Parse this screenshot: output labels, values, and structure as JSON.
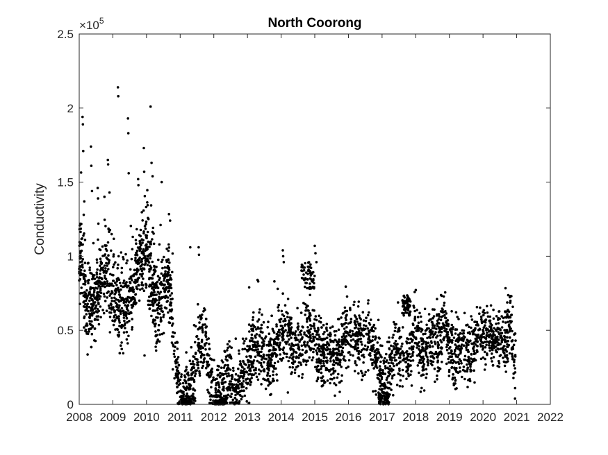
{
  "chart_data": {
    "type": "scatter",
    "title": "North Coorong",
    "xlabel": "",
    "ylabel": "Conductivity",
    "y_exponent": {
      "base": "10",
      "power": "5",
      "times": "×"
    },
    "xlim": [
      2008,
      2022
    ],
    "ylim": [
      0,
      250000
    ],
    "x_ticks": [
      "2008",
      "2009",
      "2010",
      "2011",
      "2012",
      "2013",
      "2014",
      "2015",
      "2016",
      "2017",
      "2018",
      "2019",
      "2020",
      "2021",
      "2022"
    ],
    "y_ticks": [
      "0",
      "0.5",
      "1",
      "1.5",
      "2",
      "2.5"
    ],
    "grid": false,
    "legend": "none",
    "marker_color": "#000000",
    "x_end": 2021,
    "trend": [
      [
        2008.0,
        90000
      ],
      [
        2008.08,
        100000
      ],
      [
        2008.15,
        78000
      ],
      [
        2008.25,
        62000
      ],
      [
        2008.5,
        65000
      ],
      [
        2008.75,
        90000
      ],
      [
        2008.95,
        72000
      ],
      [
        2009.2,
        62000
      ],
      [
        2009.5,
        65000
      ],
      [
        2009.8,
        95000
      ],
      [
        2010.0,
        100000
      ],
      [
        2010.15,
        80000
      ],
      [
        2010.3,
        62000
      ],
      [
        2010.5,
        68000
      ],
      [
        2010.65,
        85000
      ],
      [
        2010.8,
        45000
      ],
      [
        2010.95,
        12000
      ],
      [
        2011.1,
        3000
      ],
      [
        2011.25,
        8000
      ],
      [
        2011.4,
        25000
      ],
      [
        2011.6,
        42000
      ],
      [
        2011.75,
        40000
      ],
      [
        2011.85,
        20000
      ],
      [
        2012.0,
        7000
      ],
      [
        2012.2,
        10000
      ],
      [
        2012.4,
        22000
      ],
      [
        2012.55,
        15000
      ],
      [
        2012.7,
        10000
      ],
      [
        2012.85,
        22000
      ],
      [
        2013.0,
        28000
      ],
      [
        2013.2,
        40000
      ],
      [
        2013.4,
        38000
      ],
      [
        2013.6,
        30000
      ],
      [
        2013.8,
        36000
      ],
      [
        2014.0,
        48000
      ],
      [
        2014.2,
        46000
      ],
      [
        2014.4,
        36000
      ],
      [
        2014.6,
        42000
      ],
      [
        2014.8,
        55000
      ],
      [
        2015.0,
        40000
      ],
      [
        2015.2,
        34000
      ],
      [
        2015.4,
        38000
      ],
      [
        2015.6,
        32000
      ],
      [
        2015.8,
        40000
      ],
      [
        2016.0,
        52000
      ],
      [
        2016.2,
        46000
      ],
      [
        2016.4,
        40000
      ],
      [
        2016.6,
        48000
      ],
      [
        2016.8,
        35000
      ],
      [
        2016.95,
        20000
      ],
      [
        2017.1,
        15000
      ],
      [
        2017.3,
        28000
      ],
      [
        2017.5,
        40000
      ],
      [
        2017.7,
        25000
      ],
      [
        2017.85,
        35000
      ],
      [
        2018.0,
        55000
      ],
      [
        2018.15,
        32000
      ],
      [
        2018.3,
        40000
      ],
      [
        2018.5,
        44000
      ],
      [
        2018.7,
        40000
      ],
      [
        2018.85,
        60000
      ],
      [
        2019.0,
        42000
      ],
      [
        2019.2,
        32000
      ],
      [
        2019.4,
        40000
      ],
      [
        2019.6,
        36000
      ],
      [
        2019.8,
        44000
      ],
      [
        2020.0,
        48000
      ],
      [
        2020.2,
        45000
      ],
      [
        2020.4,
        46000
      ],
      [
        2020.6,
        42000
      ],
      [
        2020.8,
        55000
      ],
      [
        2020.95,
        30000
      ],
      [
        2021.0,
        38000
      ]
    ],
    "outliers": [
      [
        2008.1,
        194000
      ],
      [
        2008.11,
        189000
      ],
      [
        2008.12,
        171000
      ],
      [
        2008.15,
        137000
      ],
      [
        2008.35,
        174000
      ],
      [
        2008.36,
        161000
      ],
      [
        2008.38,
        144000
      ],
      [
        2008.55,
        146000
      ],
      [
        2008.56,
        139000
      ],
      [
        2008.57,
        122000
      ],
      [
        2008.85,
        165000
      ],
      [
        2008.86,
        162000
      ],
      [
        2008.9,
        143000
      ],
      [
        2009.15,
        214000
      ],
      [
        2009.16,
        208000
      ],
      [
        2009.45,
        193000
      ],
      [
        2009.46,
        183000
      ],
      [
        2009.47,
        156000
      ],
      [
        2009.75,
        152000
      ],
      [
        2009.76,
        148000
      ],
      [
        2009.92,
        173000
      ],
      [
        2009.93,
        157000
      ],
      [
        2009.94,
        33000
      ],
      [
        2010.12,
        201000
      ],
      [
        2010.15,
        163000
      ],
      [
        2010.18,
        154000
      ],
      [
        2010.45,
        150000
      ],
      [
        2010.7,
        124000
      ],
      [
        2011.3,
        106000
      ],
      [
        2011.55,
        106000
      ],
      [
        2011.56,
        101000
      ],
      [
        2013.05,
        79000
      ],
      [
        2013.3,
        84000
      ],
      [
        2013.32,
        83000
      ],
      [
        2013.35,
        62000
      ],
      [
        2013.8,
        83000
      ],
      [
        2013.9,
        78000
      ],
      [
        2014.05,
        104000
      ],
      [
        2014.06,
        100000
      ],
      [
        2014.08,
        96000
      ],
      [
        2014.2,
        8000
      ],
      [
        2015.0,
        107000
      ],
      [
        2015.02,
        102000
      ],
      [
        2015.05,
        96000
      ],
      [
        2012.98,
        2000
      ],
      [
        2013.05,
        1000
      ]
    ],
    "bands": [
      {
        "x": [
          2014.6,
          2015.0
        ],
        "y": [
          78000,
          96000
        ]
      },
      {
        "x": [
          2017.6,
          2017.85
        ],
        "y": [
          60000,
          74000
        ]
      },
      {
        "x": [
          2016.9,
          2017.2
        ],
        "y": [
          0,
          8000
        ]
      },
      {
        "x": [
          2011.0,
          2011.45
        ],
        "y": [
          0,
          6000
        ]
      },
      {
        "x": [
          2012.0,
          2012.4
        ],
        "y": [
          0,
          6000
        ]
      }
    ]
  }
}
